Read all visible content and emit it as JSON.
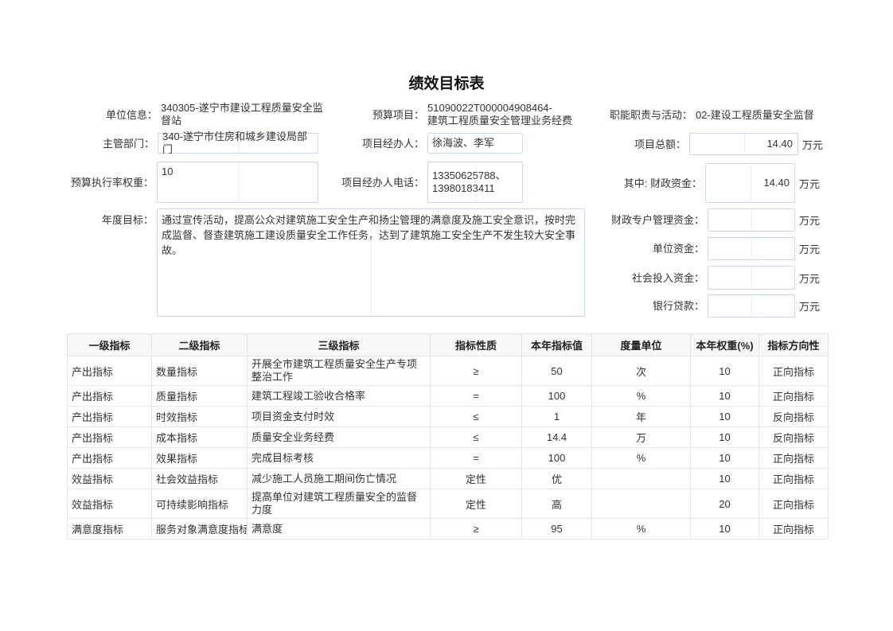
{
  "page": {
    "title": "绩效目标表"
  },
  "form": {
    "unit_info": {
      "label": "单位信息：",
      "value": "340305-遂宁市建设工程质量安全监\n督站"
    },
    "budget_project": {
      "label": "预算项目：",
      "value": "51090022T000004908464-\n建筑工程质量安全管理业务经费"
    },
    "duty_activity": {
      "label": "职能职责与活动：",
      "value": "02-建设工程质量安全监督"
    },
    "dept": {
      "label": "主管部门：",
      "value": "340-遂宁市住房和城乡建设局部门"
    },
    "manager": {
      "label": "项目经办人：",
      "value": "徐海波、李军"
    },
    "total": {
      "label": "项目总额：",
      "value": "14.40",
      "unit": "万元"
    },
    "exec_weight": {
      "label": "预算执行率权重：",
      "value": "10"
    },
    "phone": {
      "label": "项目经办人电话：",
      "value": "13350625788、\n13980183411"
    },
    "fiscal": {
      "label": "其中: 财政资金：",
      "value": "14.40",
      "unit": "万元"
    },
    "annual_goal": {
      "label": "年度目标：",
      "value": "通过宣传活动，提高公众对建筑施工安全生产和扬尘管理的满意度及施工安全意识，按时完成监督、督查建筑施工建设质量安全工作任务，达到了建筑施工安全生产不发生较大安全事故。"
    },
    "special_fund": {
      "label": "财政专户管理资金：",
      "value": "",
      "unit": "万元"
    },
    "unit_fund": {
      "label": "单位资金：",
      "value": "",
      "unit": "万元"
    },
    "social_fund": {
      "label": "社会投入资金：",
      "value": "",
      "unit": "万元"
    },
    "bank_loan": {
      "label": "银行贷款：",
      "value": "",
      "unit": "万元"
    }
  },
  "table": {
    "headers": [
      "一级指标",
      "二级指标",
      "三级指标",
      "指标性质",
      "本年指标值",
      "度量单位",
      "本年权重(%)",
      "指标方向性"
    ],
    "rows": [
      [
        "产出指标",
        "数量指标",
        "开展全市建筑工程质量安全生产专项整治工作",
        "≥",
        "50",
        "次",
        "10",
        "正向指标"
      ],
      [
        "产出指标",
        "质量指标",
        "建筑工程竣工验收合格率",
        "=",
        "100",
        "%",
        "10",
        "正向指标"
      ],
      [
        "产出指标",
        "时效指标",
        "项目资金支付时效",
        "≤",
        "1",
        "年",
        "10",
        "反向指标"
      ],
      [
        "产出指标",
        "成本指标",
        "质量安全业务经费",
        "≤",
        "14.4",
        "万",
        "10",
        "反向指标"
      ],
      [
        "产出指标",
        "效果指标",
        "完成目标考核",
        "=",
        "100",
        "%",
        "10",
        "正向指标"
      ],
      [
        "效益指标",
        "社会效益指标",
        "减少施工人员施工期间伤亡情况",
        "定性",
        "优",
        "",
        "10",
        "正向指标"
      ],
      [
        "效益指标",
        "可持续影响指标",
        "提高单位对建筑工程质量安全的监督力度",
        "定性",
        "高",
        "",
        "20",
        "正向指标"
      ],
      [
        "满意度指标",
        "服务对象满意度指标",
        "满意度",
        "≥",
        "95",
        "%",
        "10",
        "正向指标"
      ]
    ]
  },
  "colors": {
    "input_border": "#c8d7e8",
    "table_border": "#e2e5ee",
    "table_header_bg": "#f7f7f8",
    "text": "#333333",
    "title": "#111111"
  }
}
